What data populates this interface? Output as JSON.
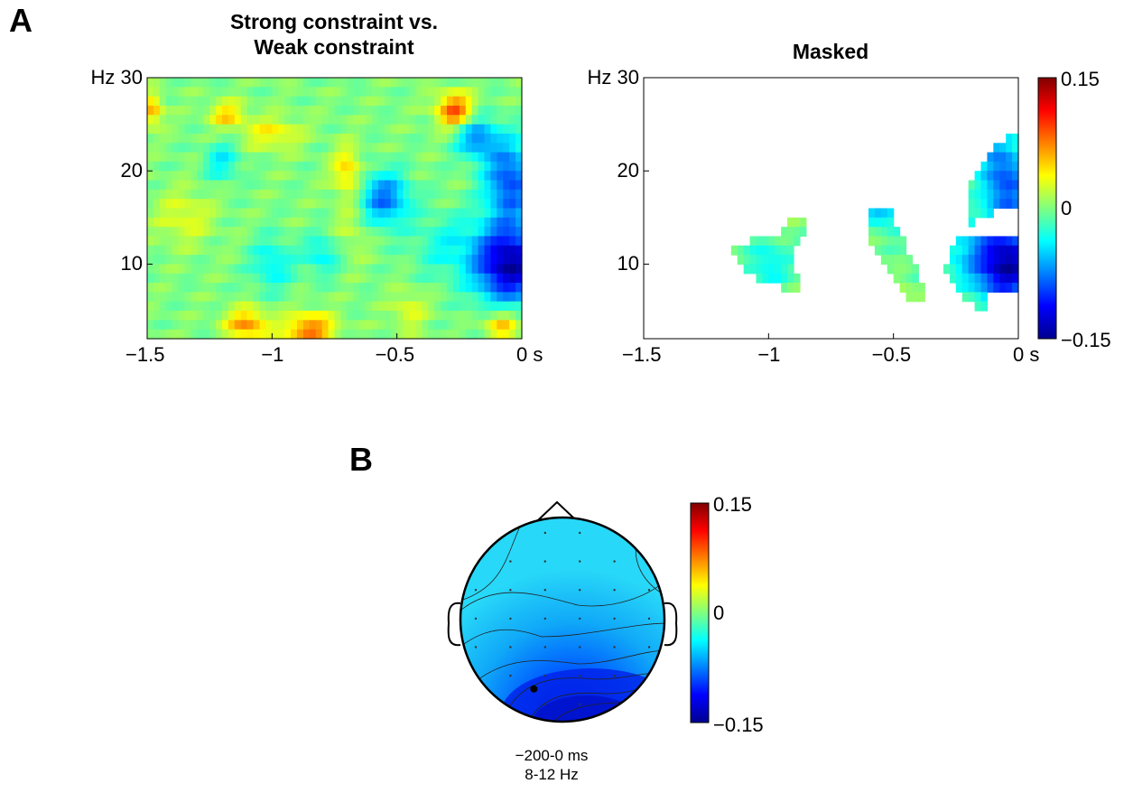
{
  "panels": {
    "a_letter": "A",
    "b_letter": "B"
  },
  "chart_data": [
    {
      "type": "heatmap",
      "title": "Strong constraint vs.\nWeak constraint",
      "title_lines": [
        "Strong constraint vs.",
        "Weak constraint"
      ],
      "x_unit": "s",
      "y_unit": "Hz",
      "xlim": [
        -1.5,
        0
      ],
      "ylim": [
        2,
        30
      ],
      "x_ticks": [
        -1.5,
        -1,
        -0.5,
        0
      ],
      "x_tick_labels": [
        "−1.5",
        "−1",
        "−0.5",
        "0 s"
      ],
      "y_ticks": [
        10,
        20,
        30
      ],
      "y_tick_labels": [
        "10",
        "20",
        "Hz 30"
      ],
      "value_range": [
        -0.15,
        0.15
      ],
      "colormap": "jet",
      "blobs": [
        {
          "t": -0.05,
          "f": 10,
          "value": -0.14,
          "st": 0.1,
          "sf": 3.0
        },
        {
          "t": -0.05,
          "f": 19,
          "value": -0.09,
          "st": 0.07,
          "sf": 3.0
        },
        {
          "t": -0.18,
          "f": 23.5,
          "value": -0.07,
          "st": 0.06,
          "sf": 1.5
        },
        {
          "t": -0.55,
          "f": 17,
          "value": -0.08,
          "st": 0.07,
          "sf": 2.0
        },
        {
          "t": -0.27,
          "f": 26.5,
          "value": 0.09,
          "st": 0.05,
          "sf": 1.3
        },
        {
          "t": -1.1,
          "f": 3.5,
          "value": 0.07,
          "st": 0.06,
          "sf": 1.2
        },
        {
          "t": -0.85,
          "f": 3.0,
          "value": 0.08,
          "st": 0.07,
          "sf": 1.2
        },
        {
          "t": -1.18,
          "f": 26,
          "value": 0.05,
          "st": 0.05,
          "sf": 1.0
        },
        {
          "t": -1.0,
          "f": 24,
          "value": 0.04,
          "st": 0.08,
          "sf": 1.2
        },
        {
          "t": -0.7,
          "f": 20,
          "value": 0.05,
          "st": 0.04,
          "sf": 1.8
        },
        {
          "t": -1.48,
          "f": 26.5,
          "value": 0.06,
          "st": 0.03,
          "sf": 1.2
        },
        {
          "t": -0.08,
          "f": 3.5,
          "value": 0.06,
          "st": 0.05,
          "sf": 1.2
        },
        {
          "t": -0.3,
          "f": 12,
          "value": -0.03,
          "st": 0.1,
          "sf": 2.5
        },
        {
          "t": -1.2,
          "f": 21,
          "value": -0.04,
          "st": 0.05,
          "sf": 1.5
        },
        {
          "t": -1.0,
          "f": 10,
          "value": -0.04,
          "st": 0.06,
          "sf": 2.0
        },
        {
          "t": -0.8,
          "f": 11,
          "value": -0.04,
          "st": 0.05,
          "sf": 1.5
        },
        {
          "t": -0.45,
          "f": 5,
          "value": 0.03,
          "st": 0.05,
          "sf": 1.5
        },
        {
          "t": -1.35,
          "f": 15,
          "value": 0.03,
          "st": 0.08,
          "sf": 2.0
        },
        {
          "t": -0.68,
          "f": 14,
          "value": 0.02,
          "st": 0.05,
          "sf": 2.5
        }
      ]
    },
    {
      "type": "heatmap",
      "title": "Masked",
      "x_unit": "s",
      "y_unit": "Hz",
      "xlim": [
        -1.5,
        0
      ],
      "ylim": [
        2,
        30
      ],
      "x_ticks": [
        -1.5,
        -1,
        -0.5,
        0
      ],
      "x_tick_labels": [
        "−1.5",
        "−1",
        "−0.5",
        "0 s"
      ],
      "y_ticks": [
        10,
        20,
        30
      ],
      "y_tick_labels": [
        "10",
        "20",
        "Hz 30"
      ],
      "value_range": [
        -0.15,
        0.15
      ],
      "colorbar_labels": [
        "0.15",
        "0",
        "−0.15"
      ],
      "colormap": "jet",
      "significant_clusters": [
        {
          "polygon": [
            [
              -1.14,
              12.5
            ],
            [
              -1.08,
              12.5
            ],
            [
              -0.95,
              13.5
            ],
            [
              -0.9,
              15
            ],
            [
              -0.86,
              15
            ],
            [
              -0.86,
              13.5
            ],
            [
              -0.9,
              11
            ],
            [
              -0.88,
              8
            ],
            [
              -0.88,
              7.5
            ],
            [
              -0.96,
              7.5
            ],
            [
              -1.02,
              8
            ],
            [
              -1.12,
              10
            ],
            [
              -1.14,
              11
            ]
          ]
        },
        {
          "polygon": [
            [
              -0.58,
              16.5
            ],
            [
              -0.53,
              16.5
            ],
            [
              -0.45,
              12
            ],
            [
              -0.38,
              8
            ],
            [
              -0.38,
              6.5
            ],
            [
              -0.45,
              6.5
            ],
            [
              -0.55,
              10
            ],
            [
              -0.6,
              13
            ],
            [
              -0.6,
              14
            ]
          ]
        },
        {
          "polygon": [
            [
              -0.02,
              24.5
            ],
            [
              0,
              24.5
            ],
            [
              0,
              16
            ],
            [
              -0.08,
              16
            ],
            [
              -0.14,
              15
            ],
            [
              -0.2,
              14
            ],
            [
              -0.2,
              18
            ],
            [
              -0.15,
              21
            ],
            [
              -0.08,
              23
            ]
          ]
        },
        {
          "polygon": [
            [
              -0.24,
              13
            ],
            [
              0,
              13
            ],
            [
              0,
              7
            ],
            [
              -0.12,
              7
            ],
            [
              -0.12,
              5.5
            ],
            [
              -0.18,
              5.5
            ],
            [
              -0.26,
              7.5
            ],
            [
              -0.3,
              9
            ],
            [
              -0.28,
              11
            ]
          ]
        }
      ]
    },
    {
      "type": "heatmap",
      "subtype": "topoplot",
      "caption_lines": [
        "−200-0 ms",
        "8-12 Hz"
      ],
      "value_range": [
        -0.15,
        0.15
      ],
      "colorbar_labels": [
        "0.15",
        "0",
        "−0.15"
      ],
      "colormap": "jet",
      "highlighted_electrode": [
        -0.28,
        -0.68
      ]
    }
  ],
  "colors": {
    "background": "#ffffff",
    "axes": "#000000"
  }
}
